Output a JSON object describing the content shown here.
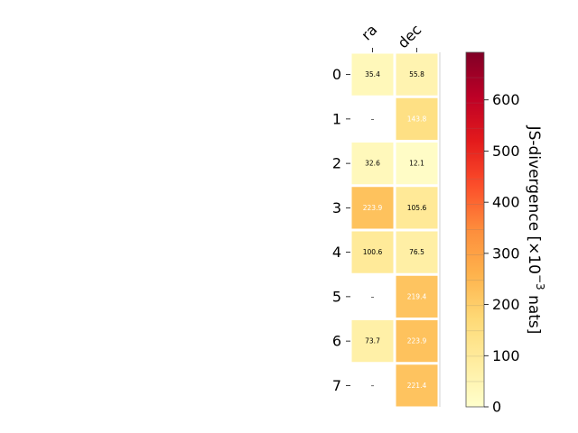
{
  "chart_data": {
    "type": "heatmap",
    "title": "",
    "columns": [
      "ra",
      "dec"
    ],
    "rows": [
      "0",
      "1",
      "2",
      "3",
      "4",
      "5",
      "6",
      "7"
    ],
    "values": [
      [
        35.4,
        55.8
      ],
      [
        null,
        143.8
      ],
      [
        32.6,
        12.1
      ],
      [
        223.9,
        105.6
      ],
      [
        100.6,
        76.5
      ],
      [
        null,
        219.4
      ],
      [
        73.7,
        223.9
      ],
      [
        null,
        221.4
      ]
    ],
    "cell_labels": [
      [
        "35.4",
        "55.8"
      ],
      [
        "–",
        "143.8"
      ],
      [
        "32.6",
        "12.1"
      ],
      [
        "223.9",
        "105.6"
      ],
      [
        "100.6",
        "76.5"
      ],
      [
        "–",
        "219.4"
      ],
      [
        "73.7",
        "223.9"
      ],
      [
        "–",
        "221.4"
      ]
    ],
    "colorbar": {
      "label": "JS-divergence [×10",
      "label_exponent": "−3",
      "label_suffix": " nats]",
      "range": [
        0,
        693
      ],
      "ticks": [
        0,
        100,
        200,
        300,
        400,
        500,
        600
      ],
      "colormap": "YlOrRd"
    }
  }
}
